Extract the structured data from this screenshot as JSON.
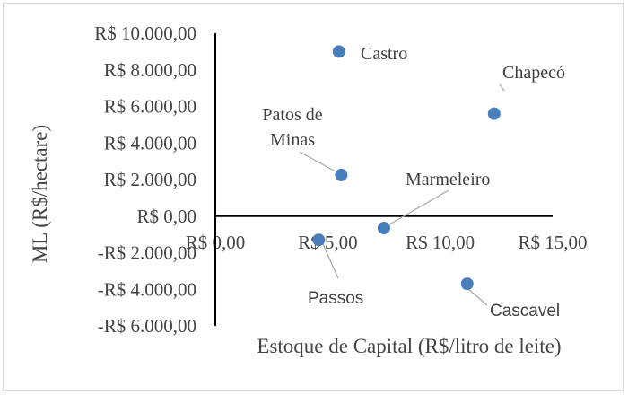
{
  "chart_data": {
    "type": "scatter",
    "title": "",
    "xlabel": "Estoque de Capital (R$/litro de leite)",
    "ylabel": "ML  (R$/hectare)",
    "xlim": [
      0,
      15
    ],
    "ylim": [
      -6000,
      10000
    ],
    "x_ticks": [
      0,
      5,
      10,
      15
    ],
    "x_tick_labels": [
      "R$ 0,00",
      "R$ 5,00",
      "R$ 10,00",
      "R$ 15,00"
    ],
    "y_ticks": [
      10000,
      8000,
      6000,
      4000,
      2000,
      0,
      -2000,
      -4000,
      -6000
    ],
    "y_tick_labels": [
      "R$ 10.000,00",
      "R$ 8.000,00",
      "R$ 6.000,00",
      "R$ 4.000,00",
      "R$ 2.000,00",
      "R$ 0,00",
      "-R$ 2.000,00",
      "-R$ 4.000,00",
      "-R$ 6.000,00"
    ],
    "grid": false,
    "marker_color": "#4a7ebb",
    "points": [
      {
        "label": "Castro",
        "x": 5.5,
        "y": 9000
      },
      {
        "label": "Chapecó",
        "x": 12.4,
        "y": 5600
      },
      {
        "label": "Patos de Minas",
        "x": 5.6,
        "y": 2250
      },
      {
        "label": "Marmeleiro",
        "x": 7.5,
        "y": -650
      },
      {
        "label": "Passos",
        "x": 4.6,
        "y": -1300
      },
      {
        "label": "Cascavel",
        "x": 11.2,
        "y": -3700
      }
    ]
  }
}
